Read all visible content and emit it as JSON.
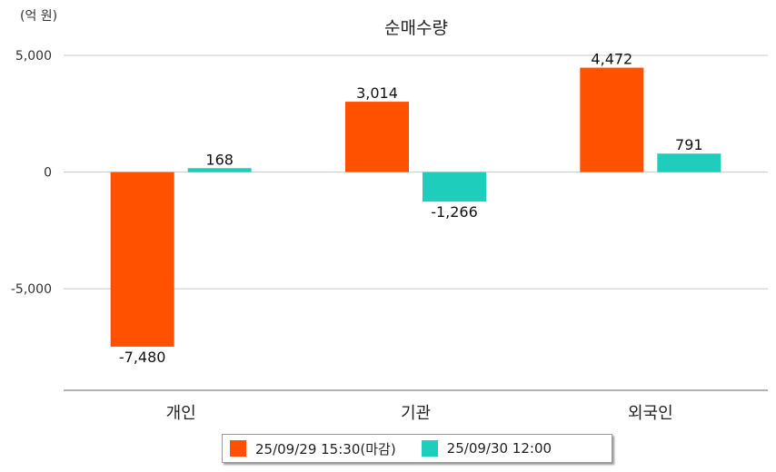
{
  "chart_data": {
    "type": "bar",
    "title": "순매수량",
    "unit_label": "(억 원)",
    "categories": [
      "개인",
      "기관",
      "외국인"
    ],
    "series": [
      {
        "name": "25/09/29 15:30(마감)",
        "color": "#ff5100",
        "values": [
          -7480,
          3014,
          4472
        ],
        "labels": [
          "-7,480",
          "3,014",
          "4,472"
        ]
      },
      {
        "name": "25/09/30 12:00",
        "color": "#1ecdbb",
        "values": [
          168,
          -1266,
          791
        ],
        "labels": [
          "168",
          "-1,266",
          "791"
        ]
      }
    ],
    "y_ticks": [
      5000,
      0,
      -5000
    ],
    "y_tick_labels": [
      "5,000",
      "0",
      "-5,000"
    ],
    "ylim": [
      -9350,
      5000
    ],
    "grid": true,
    "legend_position": "bottom"
  }
}
